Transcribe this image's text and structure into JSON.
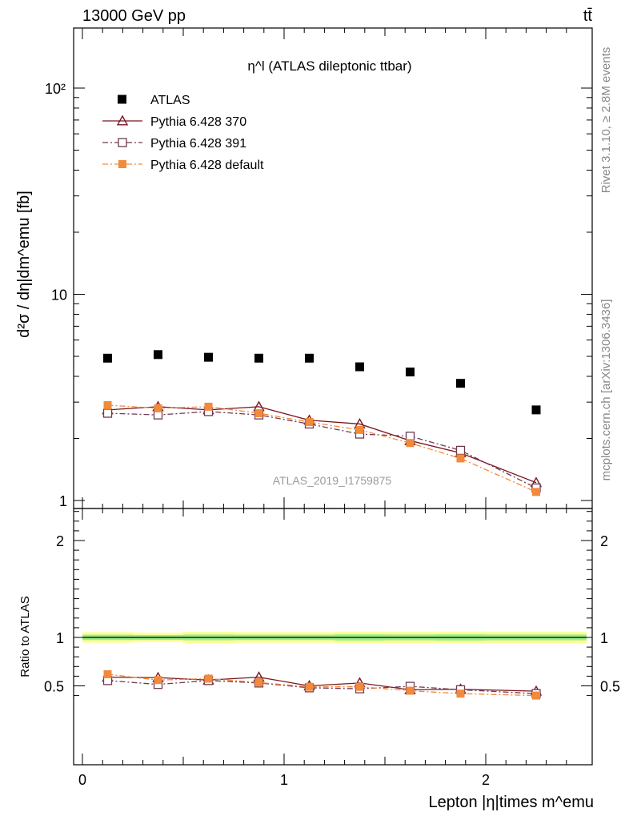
{
  "header": {
    "energy_label": "13000 GeV pp",
    "process_label": "tt̄"
  },
  "side_labels": {
    "rivet": "Rivet 3.1.10, ≥ 2.8M events",
    "mcplots": "mcplots.cern.ch [arXiv:1306.3436]"
  },
  "chart_data": [
    {
      "type": "scatter",
      "panel": "main",
      "title": "η^l (ATLAS dileptonic ttbar)",
      "ylabel": "d²σ / dη|dm^emu [fb]",
      "xlabel": "",
      "watermark": "ATLAS_2019_I1759875",
      "yscale": "log",
      "ylim": [
        1,
        200
      ],
      "xlim": [
        -0.1,
        2.5
      ],
      "y_ticks": [
        "1",
        "10",
        "10²"
      ],
      "legend_position": "top-left",
      "x": [
        0.125,
        0.375,
        0.625,
        0.875,
        1.125,
        1.375,
        1.625,
        1.875,
        2.25
      ],
      "series": [
        {
          "name": "ATLAS",
          "style": "data",
          "marker": "square-filled",
          "color": "#000000",
          "values": [
            4.9,
            5.1,
            4.95,
            4.9,
            4.9,
            4.45,
            4.2,
            3.7,
            2.75
          ]
        },
        {
          "name": "Pythia 6.428 370",
          "style": "solid",
          "marker": "triangle-open",
          "color": "#7b1520",
          "values": [
            2.75,
            2.85,
            2.75,
            2.85,
            2.45,
            2.35,
            1.95,
            1.7,
            1.22
          ]
        },
        {
          "name": "Pythia 6.428 391",
          "style": "dashdot",
          "marker": "square-open",
          "color": "#6e3a52",
          "values": [
            2.65,
            2.6,
            2.7,
            2.6,
            2.35,
            2.1,
            2.05,
            1.75,
            1.15
          ]
        },
        {
          "name": "Pythia 6.428 default",
          "style": "dashdot",
          "marker": "square-filled",
          "color": "#f28a3c",
          "values": [
            2.9,
            2.8,
            2.85,
            2.65,
            2.4,
            2.2,
            1.9,
            1.6,
            1.1
          ]
        }
      ]
    },
    {
      "type": "line",
      "panel": "ratio",
      "ylabel": "Ratio to ATLAS",
      "xlabel": "Lepton |η|times m^emu",
      "ylim": [
        0.35,
        2.45
      ],
      "xlim": [
        -0.1,
        2.5
      ],
      "y_ticks": [
        "0.5",
        "1",
        "2"
      ],
      "x_ticks": [
        "0",
        "1",
        "2"
      ],
      "x": [
        0.125,
        0.375,
        0.625,
        0.875,
        1.125,
        1.375,
        1.625,
        1.875,
        2.25
      ],
      "series": [
        {
          "name": "Pythia 6.428 370",
          "style": "solid",
          "marker": "triangle-open",
          "color": "#7b1520",
          "values": [
            0.59,
            0.585,
            0.56,
            0.59,
            0.5,
            0.53,
            0.46,
            0.465,
            0.445
          ]
        },
        {
          "name": "Pythia 6.428 391",
          "style": "dashdot",
          "marker": "square-open",
          "color": "#6e3a52",
          "values": [
            0.555,
            0.515,
            0.555,
            0.53,
            0.48,
            0.47,
            0.495,
            0.46,
            0.42
          ]
        },
        {
          "name": "Pythia 6.428 default",
          "style": "dashdot",
          "marker": "square-filled",
          "color": "#f28a3c",
          "values": [
            0.62,
            0.56,
            0.575,
            0.535,
            0.49,
            0.49,
            0.45,
            0.42,
            0.4
          ]
        }
      ]
    }
  ]
}
